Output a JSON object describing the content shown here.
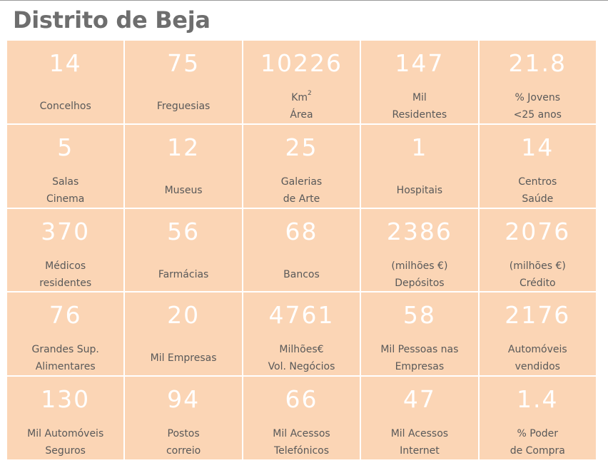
{
  "title": "Distrito de Beja",
  "colors": {
    "cell": "#fbd5b5",
    "value_text": "#ffffff",
    "label_text": "#595959",
    "title_text": "#6e6e6e"
  },
  "cells": [
    {
      "value": "14",
      "line1": "Concelhos"
    },
    {
      "value": "75",
      "line1": "Freguesias"
    },
    {
      "value": "10226",
      "line1": "Km",
      "sup": "2",
      "line2": "Área"
    },
    {
      "value": "147",
      "line1": "Mil",
      "line2": "Residentes"
    },
    {
      "value": "21.8",
      "line1": "% Jovens",
      "line2": "<25 anos"
    },
    {
      "value": "5",
      "line1": "Salas",
      "line2": "Cinema"
    },
    {
      "value": "12",
      "line1": "Museus"
    },
    {
      "value": "25",
      "line1": "Galerias",
      "line2": "de Arte"
    },
    {
      "value": "1",
      "line1": "Hospitais"
    },
    {
      "value": "14",
      "line1": "Centros",
      "line2": "Saúde"
    },
    {
      "value": "370",
      "line1": "Médicos",
      "line2": "residentes"
    },
    {
      "value": "56",
      "line1": "Farmácias"
    },
    {
      "value": "68",
      "line1": "Bancos"
    },
    {
      "value": "2386",
      "line1": "(milhões €)",
      "line2": "Depósitos"
    },
    {
      "value": "2076",
      "line1": "(milhões €)",
      "line2": "Crédito"
    },
    {
      "value": "76",
      "line1": "Grandes Sup.",
      "line2": "Alimentares"
    },
    {
      "value": "20",
      "line1": "Mil Empresas"
    },
    {
      "value": "4761",
      "line1": "Milhões€",
      "line2": "Vol. Negócios"
    },
    {
      "value": "58",
      "line1": "Mil Pessoas nas",
      "line2": "Empresas"
    },
    {
      "value": "2176",
      "line1": "Automóveis",
      "line2": "vendidos"
    },
    {
      "value": "130",
      "line1": "Mil Automóveis",
      "line2": "Seguros"
    },
    {
      "value": "94",
      "line1": "Postos",
      "line2": "correio"
    },
    {
      "value": "66",
      "line1": "Mil Acessos",
      "line2": "Telefónicos"
    },
    {
      "value": "47",
      "line1": "Mil Acessos",
      "line2": "Internet"
    },
    {
      "value": "1.4",
      "line1": "% Poder",
      "line2": "de Compra"
    }
  ]
}
